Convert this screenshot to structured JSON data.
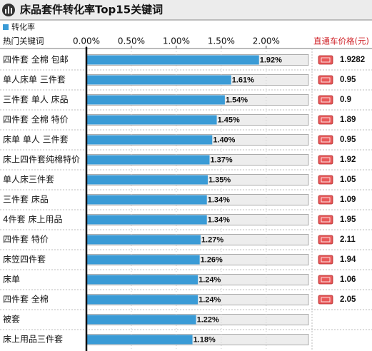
{
  "chart_data": {
    "type": "bar",
    "title": "床品套件转化率Top15关键词",
    "category_header": "热门关键词",
    "categories": [
      "四件套 全棉 包邮",
      "单人床单 三件套",
      "三件套 单人 床品",
      "四件套 全棉 特价",
      "床单 单人 三件套",
      "床上四件套纯棉特价",
      "单人床三件套",
      "三件套 床品",
      "4件套 床上用品",
      "四件套 特价",
      "床笠四件套",
      "床单",
      "四件套 全棉",
      "被套",
      "床上用品三件套"
    ],
    "series": [
      {
        "name": "转化率",
        "color": "#3a9bd6",
        "values": [
          1.92,
          1.61,
          1.54,
          1.45,
          1.4,
          1.37,
          1.35,
          1.34,
          1.34,
          1.27,
          1.26,
          1.24,
          1.24,
          1.22,
          1.18
        ],
        "value_labels": [
          "1.92%",
          "1.61%",
          "1.54%",
          "1.45%",
          "1.40%",
          "1.37%",
          "1.35%",
          "1.34%",
          "1.34%",
          "1.27%",
          "1.26%",
          "1.24%",
          "1.24%",
          "1.22%",
          "1.18%"
        ]
      }
    ],
    "xlim": [
      0,
      2.47
    ],
    "xticks": [
      {
        "value": 0,
        "label": "0.00%"
      },
      {
        "value": 0.5,
        "label": "0.50%"
      },
      {
        "value": 1,
        "label": "1.00%"
      },
      {
        "value": 1.5,
        "label": "1.50%"
      },
      {
        "value": 2,
        "label": "2.00%"
      }
    ],
    "grid": true,
    "price_column": {
      "header": "直通车价格(元)",
      "values": [
        1.9282,
        0.95,
        0.9,
        1.89,
        0.95,
        1.92,
        1.05,
        1.09,
        1.95,
        2.11,
        1.94,
        1.06,
        2.05,
        null,
        null
      ]
    }
  }
}
